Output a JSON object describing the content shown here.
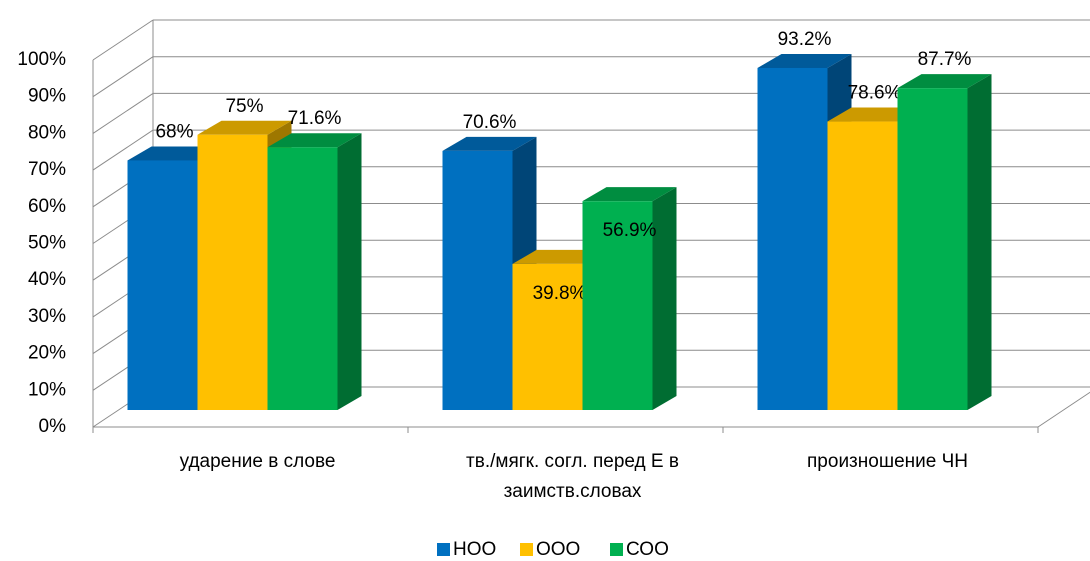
{
  "chart_data": {
    "type": "bar3d",
    "categories": [
      "ударение в слове",
      "тв./мягк. согл. перед Е в заимств.словах",
      "произношение ЧН"
    ],
    "series": [
      {
        "name": "НОО",
        "color": "#0070c0",
        "values": [
          68,
          70.6,
          93.2
        ],
        "value_labels": [
          "68%",
          "70.6%",
          "93.2%"
        ]
      },
      {
        "name": "ООО",
        "color": "#ffc000",
        "values": [
          75,
          39.8,
          78.6
        ],
        "value_labels": [
          "75%",
          "39.8%",
          "78.6%"
        ]
      },
      {
        "name": "СОО",
        "color": "#00b050",
        "values": [
          71.6,
          56.9,
          87.7
        ],
        "value_labels": [
          "71.6%",
          "56.9%",
          "87.7%"
        ]
      }
    ],
    "ylim": [
      0,
      100
    ],
    "yticks": [
      {
        "value": 0,
        "label": "0%"
      },
      {
        "value": 10,
        "label": "10%"
      },
      {
        "value": 20,
        "label": "20%"
      },
      {
        "value": 30,
        "label": "30%"
      },
      {
        "value": 40,
        "label": "40%"
      },
      {
        "value": 50,
        "label": "50%"
      },
      {
        "value": 60,
        "label": "60%"
      },
      {
        "value": 70,
        "label": "70%"
      },
      {
        "value": 80,
        "label": "80%"
      },
      {
        "value": 90,
        "label": "90%"
      },
      {
        "value": 100,
        "label": "100%"
      }
    ],
    "grid": true,
    "legend": "bottom"
  }
}
